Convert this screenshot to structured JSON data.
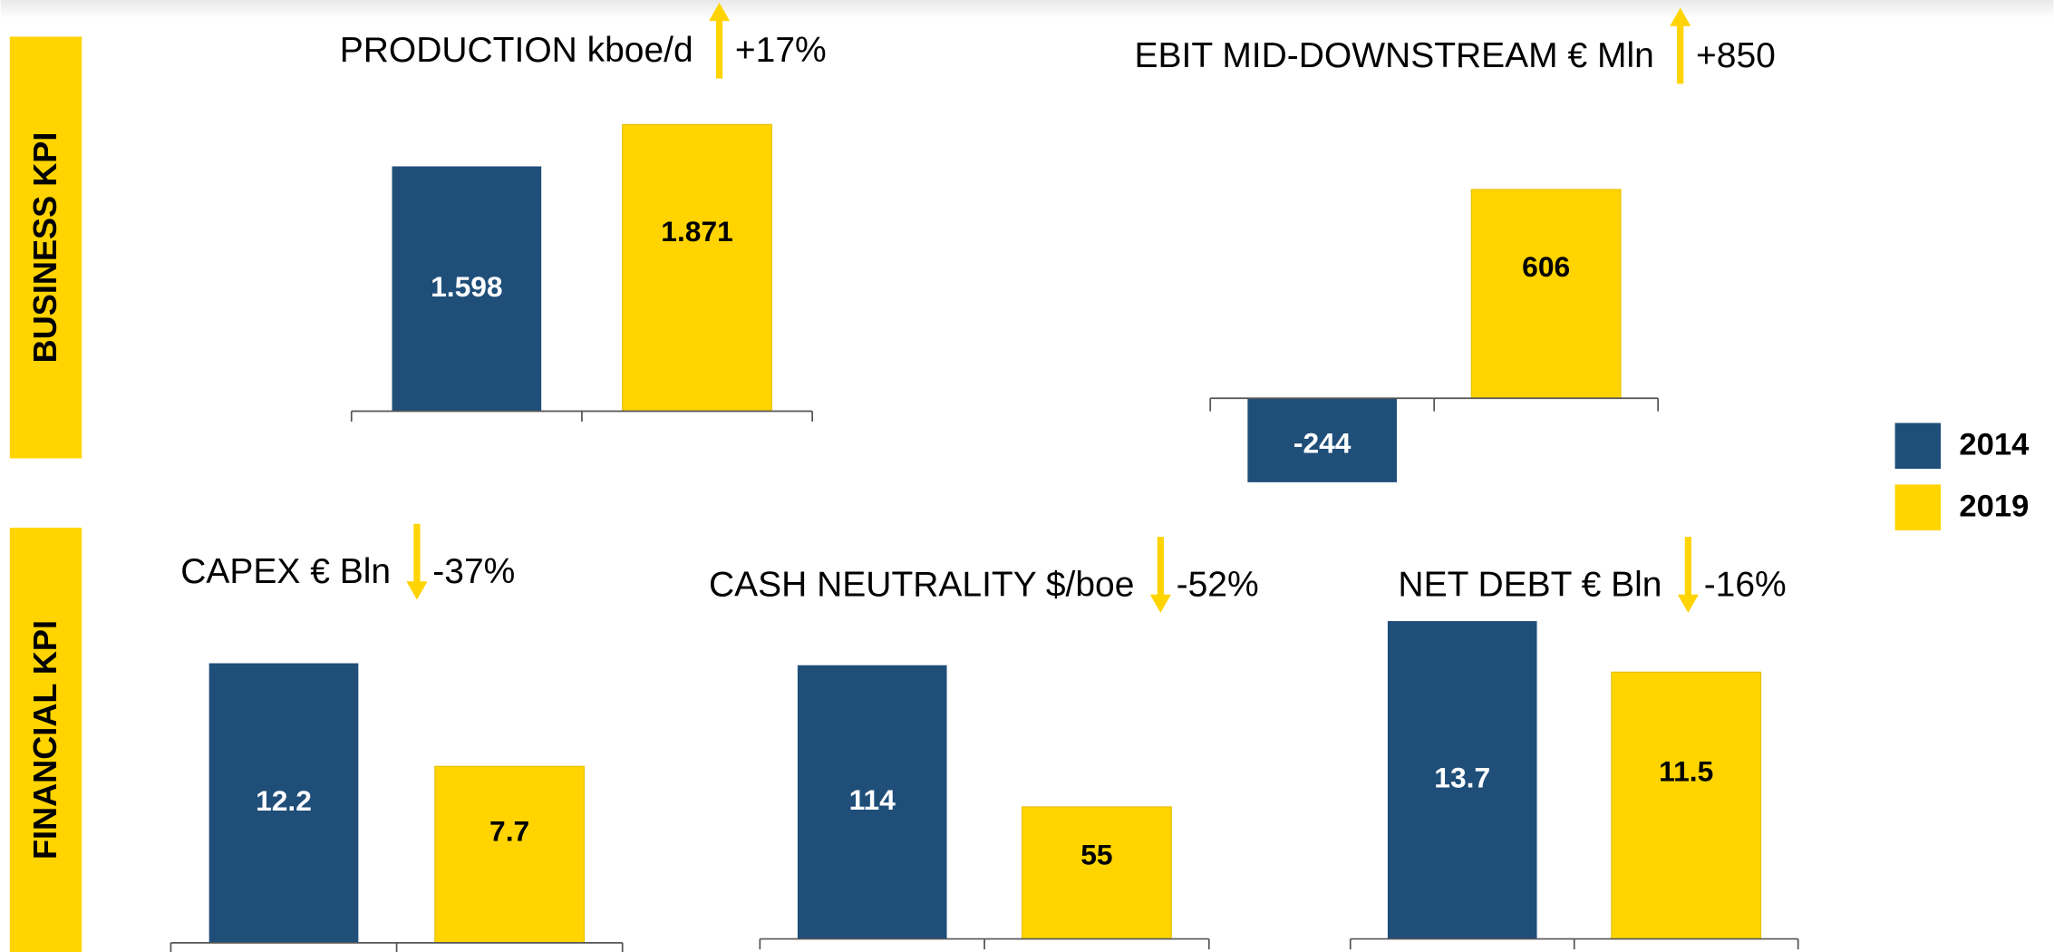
{
  "sections": [
    "BUSINESS  KPI",
    "FINANCIAL  KPI"
  ],
  "legend": [
    {
      "name": "2014",
      "color": "#1f4e79"
    },
    {
      "name": "2019",
      "color": "#ffd400"
    }
  ],
  "chart_data": [
    {
      "type": "bar",
      "title": "PRODUCTION kboe/d",
      "change": "+17%",
      "direction": "up",
      "values": [
        1.598,
        1.871
      ],
      "ylim": [
        0,
        2
      ]
    },
    {
      "type": "bar",
      "title": "EBIT MID-DOWNSTREAM € Mln",
      "change": "+850",
      "direction": "up",
      "values": [
        -244,
        606
      ],
      "ylim": [
        -300,
        700
      ]
    },
    {
      "type": "bar",
      "title": "CAPEX € Bln",
      "change": "-37%",
      "direction": "down",
      "values": [
        12.2,
        7.7
      ],
      "ylim": [
        0,
        14
      ]
    },
    {
      "type": "bar",
      "title": "CASH NEUTRALITY $/boe",
      "change": "-52%",
      "direction": "down",
      "values": [
        114,
        55
      ],
      "ylim": [
        0,
        120
      ]
    },
    {
      "type": "bar",
      "title": "NET DEBT € Bln",
      "change": "-16%",
      "direction": "down",
      "values": [
        13.7,
        11.5
      ],
      "ylim": [
        0,
        14
      ]
    }
  ]
}
